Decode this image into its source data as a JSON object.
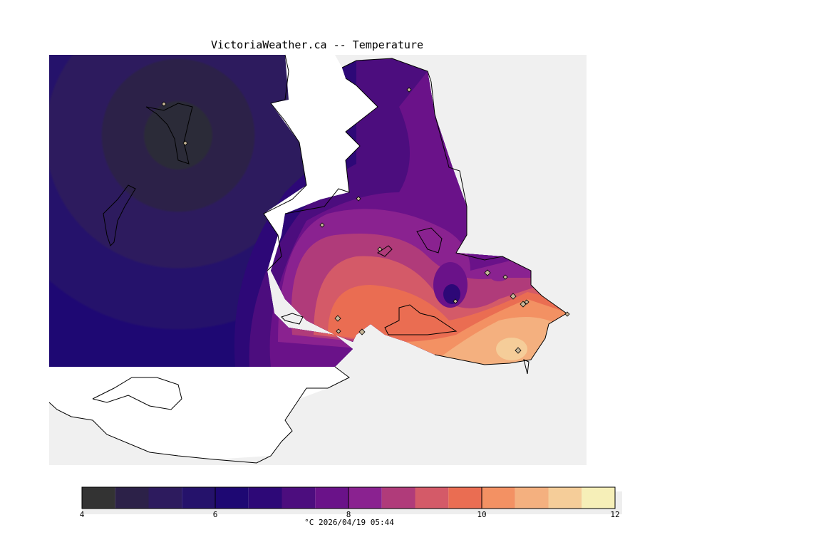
{
  "title": "VictoriaWeather.ca -- Temperature",
  "units_timestamp": "°C  2026/04/19 05:44",
  "legend": {
    "min": 4,
    "max": 12,
    "step": 0.5,
    "tick_labels": [
      "4",
      "6",
      "8",
      "10",
      "12"
    ],
    "colors": [
      "#333333",
      "#2c2148",
      "#2d1b5e",
      "#25126b",
      "#1e0873",
      "#2d0877",
      "#4c0d7e",
      "#6a1289",
      "#8a2290",
      "#b03b7a",
      "#d45a68",
      "#ea6d52",
      "#f39163",
      "#f4b07f",
      "#f5cd99",
      "#f6efb8"
    ]
  },
  "map": {
    "land_color": "#f0f0f0",
    "water_color": "#ffffff",
    "coast_color": "#000000",
    "station_marker_color": "#c8b89a",
    "station_count": 17
  }
}
